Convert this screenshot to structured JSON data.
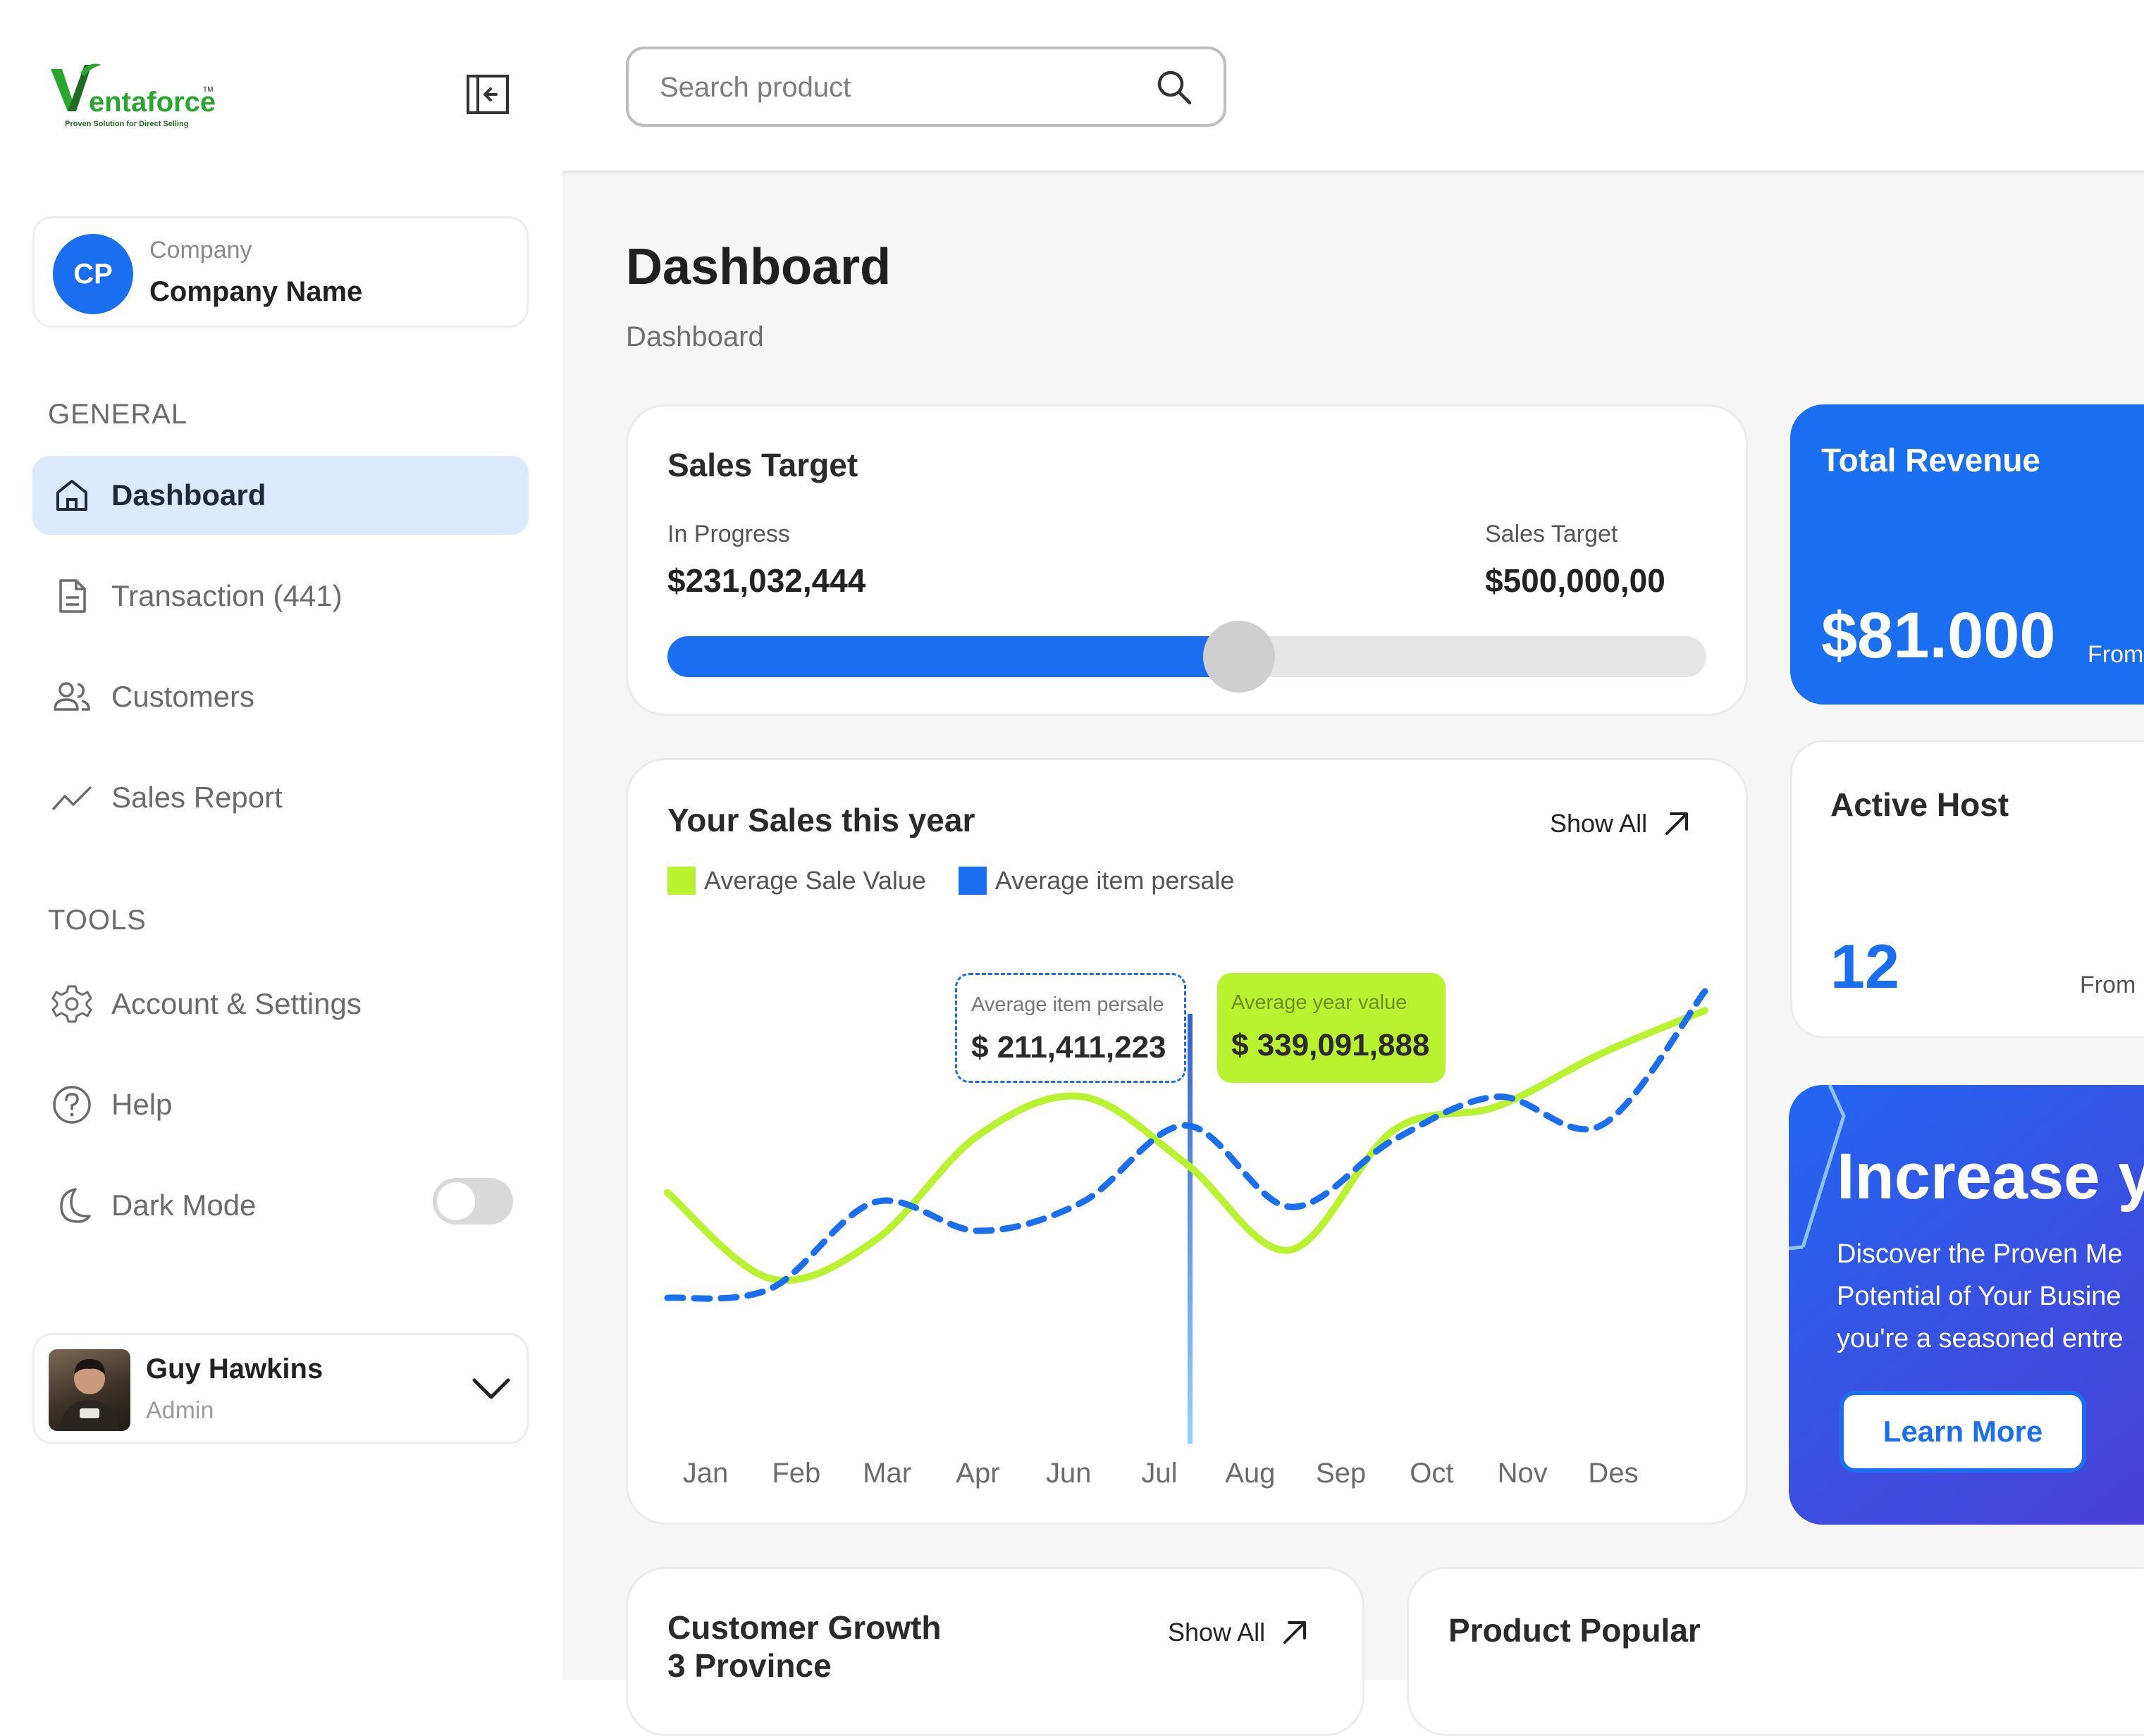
{
  "brand": {
    "name_initial": "V",
    "name_rest": "entaforce",
    "tm": "TM",
    "tagline": "Proven Solution for Direct Selling",
    "green": "#2aa52e",
    "dark_green": "#1f6b22"
  },
  "colors": {
    "accent_blue": "#1a6ef0",
    "lime": "#b9f22f",
    "active_nav_bg": "#dbeafd"
  },
  "company": {
    "initials": "CP",
    "label": "Company",
    "name": "Company Name"
  },
  "sidebar": {
    "general_label": "GENERAL",
    "tools_label": "TOOLS",
    "general_items": [
      {
        "label": "Dashboard",
        "icon": "home-icon",
        "active": true
      },
      {
        "label": "Transaction (441)",
        "icon": "document-icon"
      },
      {
        "label": "Customers",
        "icon": "users-icon"
      },
      {
        "label": "Sales Report",
        "icon": "trend-line-icon"
      }
    ],
    "tools_items": [
      {
        "label": "Account & Settings",
        "icon": "gear-icon"
      },
      {
        "label": "Help",
        "icon": "help-circle-icon"
      },
      {
        "label": "Dark Mode",
        "icon": "moon-icon",
        "toggle_on": false
      }
    ]
  },
  "user": {
    "name": "Guy Hawkins",
    "role": "Admin"
  },
  "search": {
    "placeholder": "Search product"
  },
  "page": {
    "title": "Dashboard",
    "breadcrumb": "Dashboard"
  },
  "sales_target": {
    "title": "Sales Target",
    "progress_label": "In Progress",
    "progress_value": "$231,032,444",
    "target_label": "Sales Target",
    "target_value": "$500,000,00",
    "progress_fraction": 0.55
  },
  "total_revenue": {
    "title": "Total Revenue",
    "value": "$81.000",
    "from": "From"
  },
  "active_host": {
    "title": "Active Host",
    "value": "12",
    "from": "From"
  },
  "promo": {
    "title": "Increase yo",
    "lines": [
      "Discover the Proven Me",
      "Potential of Your Busine",
      "you're a seasoned entre"
    ],
    "button": "Learn More"
  },
  "sales_year": {
    "title": "Your Sales this year",
    "show_all": "Show All",
    "tooltip_item": {
      "label": "Average item persale",
      "value": "$ 211,411,223"
    },
    "tooltip_year": {
      "label": "Average year value",
      "value": "$ 339,091,888"
    }
  },
  "chart_data": {
    "type": "line",
    "categories": [
      "Jan",
      "Feb",
      "Mar",
      "Apr",
      "Jun",
      "Jul",
      "Aug",
      "Sep",
      "Oct",
      "Nov",
      "Des"
    ],
    "series": [
      {
        "name": "Average Sale Value",
        "color": "#b9f22f",
        "style": "solid",
        "values": [
          48,
          30,
          38,
          60,
          68,
          54,
          36,
          61,
          66,
          77,
          86
        ]
      },
      {
        "name": "Average item persale",
        "color": "#1a6ef0",
        "style": "dashed",
        "values": [
          26,
          28,
          46,
          40,
          46,
          62,
          45,
          59,
          68,
          62,
          90
        ]
      }
    ],
    "highlight_category": "Jul",
    "ylim": [
      0,
      100
    ],
    "grid": false,
    "legend_position": "top-left"
  },
  "customer_growth": {
    "title_line1": "Customer Growth",
    "title_line2": "3 Province",
    "show_all": "Show All"
  },
  "product_popular": {
    "title": "Product Popular"
  }
}
